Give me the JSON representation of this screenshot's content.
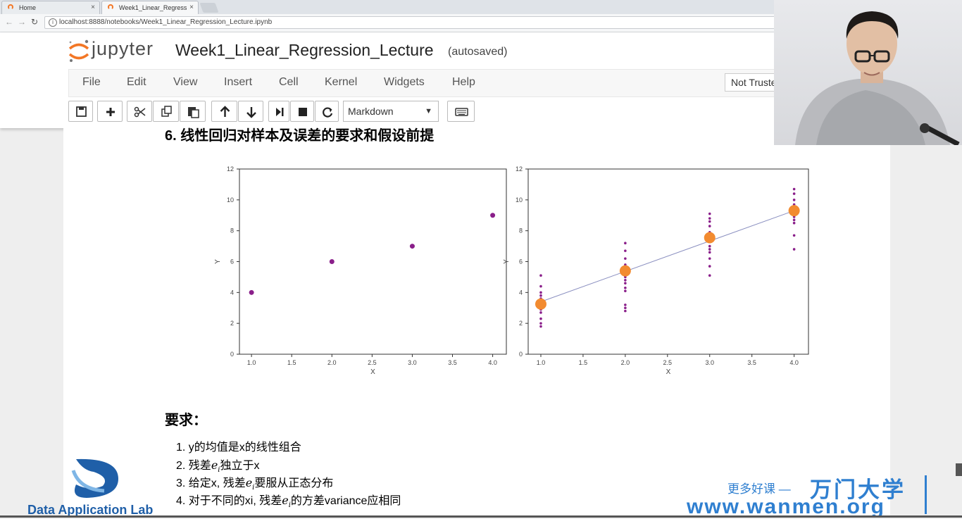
{
  "browser": {
    "tabs": [
      {
        "title": "Home",
        "close": "×"
      },
      {
        "title": "Week1_Linear_Regress",
        "close": "×"
      }
    ],
    "url": "localhost:8888/notebooks/Week1_Linear_Regression_Lecture.ipynb"
  },
  "jupyter": {
    "logo_text": "jupyter",
    "notebook_name": "Week1_Linear_Regression_Lecture",
    "save_status": "(autosaved)",
    "menu": [
      "File",
      "Edit",
      "View",
      "Insert",
      "Cell",
      "Kernel",
      "Widgets",
      "Help"
    ],
    "trust": "Not Trusted",
    "cell_type": "Markdown",
    "caret": "▼"
  },
  "notebook": {
    "heading": "6. 线性回归对样本及误差的要求和假设前提",
    "requirements_title": "要求：",
    "requirements": [
      {
        "num": "1.",
        "pre": "y的均值是x的线性组合",
        "var": "",
        "sub": "",
        "post": ""
      },
      {
        "num": "2.",
        "pre": "残差",
        "var": "e",
        "sub": "i",
        "post": "独立于x"
      },
      {
        "num": "3.",
        "pre": "给定x, 残差",
        "var": "e",
        "sub": "i",
        "post": "要服从正态分布"
      },
      {
        "num": "4.",
        "pre": "对于不同的xi, 残差",
        "var": "e",
        "sub": "i",
        "post": "的方差variance应相同"
      }
    ]
  },
  "chart_data": [
    {
      "type": "scatter",
      "xlabel": "X",
      "ylabel": "Y",
      "xlim": [
        0.85,
        4.17
      ],
      "ylim": [
        0,
        12
      ],
      "xticks": [
        "1.0",
        "1.5",
        "2.0",
        "2.5",
        "3.0",
        "3.5",
        "4.0"
      ],
      "yticks": [
        "0",
        "2",
        "4",
        "6",
        "8",
        "10",
        "12"
      ],
      "points": [
        [
          1.0,
          4.0
        ],
        [
          2.0,
          6.0
        ],
        [
          3.0,
          7.0
        ],
        [
          4.0,
          9.0
        ]
      ],
      "color": "#8a1f8a"
    },
    {
      "type": "scatter",
      "xlabel": "X",
      "ylabel": "Y",
      "xlim": [
        0.85,
        4.17
      ],
      "ylim": [
        0,
        12
      ],
      "xticks": [
        "1.0",
        "1.5",
        "2.0",
        "2.5",
        "3.0",
        "3.5",
        "4.0"
      ],
      "yticks": [
        "0",
        "2",
        "4",
        "6",
        "8",
        "10",
        "12"
      ],
      "samples": [
        {
          "x": 1.0,
          "y": [
            1.8,
            2.0,
            2.3,
            2.7,
            2.9,
            3.1,
            3.4,
            3.6,
            3.8,
            4.0,
            4.4,
            5.1
          ]
        },
        {
          "x": 2.0,
          "y": [
            2.8,
            3.0,
            3.2,
            4.1,
            4.3,
            4.6,
            4.8,
            5.0,
            5.2,
            5.6,
            5.8,
            6.2,
            6.7,
            7.2
          ]
        },
        {
          "x": 3.0,
          "y": [
            5.1,
            5.7,
            6.2,
            6.6,
            6.8,
            7.0,
            7.3,
            7.6,
            7.9,
            8.3,
            8.6,
            8.8,
            9.1
          ]
        },
        {
          "x": 4.0,
          "y": [
            6.8,
            7.7,
            8.5,
            8.7,
            8.9,
            9.1,
            9.4,
            9.7,
            10.0,
            10.4,
            10.7
          ]
        }
      ],
      "means": [
        [
          1.0,
          3.25
        ],
        [
          2.0,
          5.4
        ],
        [
          3.0,
          7.55
        ],
        [
          4.0,
          9.3
        ]
      ],
      "fit_line": [
        [
          1.0,
          3.4
        ],
        [
          4.0,
          9.3
        ]
      ],
      "sample_color": "#8a1f8a",
      "mean_color": "#f28b30",
      "line_color": "#8a8fc0"
    }
  ],
  "watermark": {
    "lab": "Data Application Lab",
    "slogan": "更多好课 —",
    "brand": "万门大学",
    "site": "www.wanmen.org"
  },
  "colors": {
    "jupyter_orange": "#f37726",
    "watermark_blue": "#2f7fd0"
  }
}
